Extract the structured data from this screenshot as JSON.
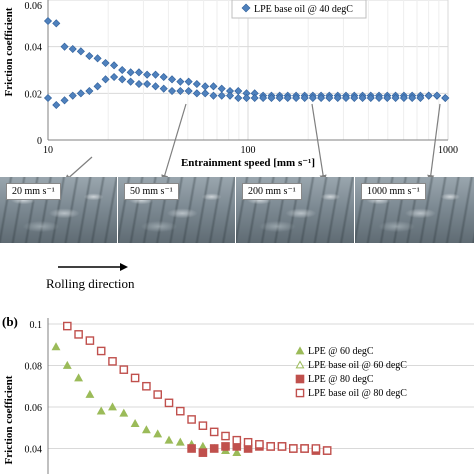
{
  "panel_b_label": "(b)",
  "photo_labels": [
    "20 mm s⁻¹",
    "50 mm s⁻¹",
    "200 mm s⁻¹",
    "1000 mm s⁻¹"
  ],
  "rolling_direction": "Rolling direction",
  "chart_data": [
    {
      "type": "scatter",
      "xlabel": "Entrainment speed [mm s⁻¹]",
      "ylabel": "Friction coefficient",
      "x_scale": "log",
      "xlim": [
        10,
        1000
      ],
      "ylim": [
        0,
        0.06
      ],
      "x_ticks": [
        "10",
        "100",
        "1000"
      ],
      "y_ticks": [
        "0",
        "0.02",
        "0.04",
        "0.06"
      ],
      "grid": true,
      "legend": "top-right",
      "series": [
        {
          "name": "LPE base oil @ 40 degC",
          "color": "#4f81bd",
          "marker": "diamond",
          "x": [
            10.0,
            11.0,
            12.1,
            13.3,
            14.6,
            16.1,
            17.7,
            19.4,
            21.4,
            23.5,
            25.9,
            28.5,
            31.3,
            34.5,
            37.9,
            41.7,
            45.9,
            50.5,
            55.5,
            61.1,
            67.2,
            73.9,
            81.3,
            89.4,
            98.3,
            108,
            119,
            131,
            144,
            158,
            174,
            192,
            211,
            232,
            255,
            281,
            309,
            340,
            374,
            411,
            452,
            497,
            547,
            602,
            662,
            728,
            801,
            881,
            969,
            10.0,
            11.0,
            12.1,
            13.3,
            14.6,
            16.1,
            17.7,
            19.4,
            21.4,
            23.5,
            25.9,
            28.5,
            31.3,
            34.5,
            37.9,
            41.7,
            45.9,
            50.5,
            55.5,
            61.1,
            67.2,
            73.9,
            81.3,
            89.4,
            98.3,
            108,
            119,
            131,
            144,
            158,
            174,
            192,
            211,
            232,
            255,
            281,
            309,
            340,
            374,
            411,
            452,
            497,
            547,
            602,
            662,
            728,
            801,
            881,
            969
          ],
          "y": [
            0.051,
            0.05,
            0.04,
            0.039,
            0.038,
            0.036,
            0.035,
            0.033,
            0.032,
            0.03,
            0.029,
            0.029,
            0.028,
            0.028,
            0.027,
            0.026,
            0.025,
            0.025,
            0.024,
            0.023,
            0.023,
            0.022,
            0.021,
            0.021,
            0.02,
            0.02,
            0.019,
            0.019,
            0.019,
            0.019,
            0.019,
            0.019,
            0.019,
            0.019,
            0.019,
            0.019,
            0.019,
            0.019,
            0.019,
            0.019,
            0.019,
            0.019,
            0.019,
            0.019,
            0.019,
            0.019,
            0.019,
            0.019,
            0.018,
            0.018,
            0.015,
            0.017,
            0.019,
            0.02,
            0.021,
            0.023,
            0.026,
            0.027,
            0.026,
            0.025,
            0.024,
            0.024,
            0.023,
            0.022,
            0.021,
            0.021,
            0.021,
            0.02,
            0.02,
            0.019,
            0.019,
            0.019,
            0.018,
            0.018,
            0.018,
            0.018,
            0.018,
            0.018,
            0.018,
            0.018,
            0.018,
            0.018,
            0.018,
            0.018,
            0.018,
            0.018,
            0.018,
            0.018,
            0.018,
            0.018,
            0.018,
            0.018,
            0.018,
            0.018,
            0.018,
            0.019,
            0.019,
            0.018
          ]
        }
      ]
    },
    {
      "type": "scatter",
      "ylabel": "Friction coefficient",
      "ylim": [
        0.04,
        0.1
      ],
      "y_ticks": [
        "0.04",
        "0.06",
        "0.08",
        "0.1"
      ],
      "grid": true,
      "legend": "right",
      "series": [
        {
          "name": "LPE @ 60 degC",
          "color": "#9bbb59",
          "marker": "triangle",
          "x": [
            1,
            2,
            3,
            4,
            5,
            6,
            7,
            8,
            9,
            10,
            11,
            12,
            13,
            14,
            15,
            16,
            17
          ],
          "y": [
            0.089,
            0.08,
            0.074,
            0.066,
            0.058,
            0.06,
            0.057,
            0.052,
            0.049,
            0.047,
            0.044,
            0.043,
            0.042,
            0.041,
            0.04,
            0.039,
            0.038
          ]
        },
        {
          "name": "LPE base oil @ 60 degC",
          "color": "#9bbb59",
          "marker": "triangle-open",
          "x": [],
          "y": []
        },
        {
          "name": "LPE @ 80 degC",
          "color": "#c0504d",
          "marker": "square",
          "x": [
            13,
            14,
            15,
            16,
            17,
            18,
            19,
            20,
            21,
            22,
            23,
            24,
            25
          ],
          "y": [
            0.04,
            0.038,
            0.04,
            0.041,
            0.041,
            0.04,
            0.041,
            0.041,
            0.041,
            0.04,
            0.04,
            0.039,
            0.039
          ]
        },
        {
          "name": "LPE base oil @ 80 degC",
          "color": "#c0504d",
          "marker": "square-open",
          "x": [
            2,
            3,
            4,
            5,
            6,
            7,
            8,
            9,
            10,
            11,
            12,
            13,
            14,
            15,
            16,
            17,
            18,
            19,
            20,
            21,
            22,
            23,
            24,
            25
          ],
          "y": [
            0.099,
            0.095,
            0.092,
            0.087,
            0.082,
            0.078,
            0.074,
            0.07,
            0.066,
            0.062,
            0.058,
            0.054,
            0.051,
            0.048,
            0.046,
            0.044,
            0.043,
            0.042,
            0.041,
            0.041,
            0.04,
            0.04,
            0.04,
            0.039
          ]
        }
      ]
    }
  ]
}
